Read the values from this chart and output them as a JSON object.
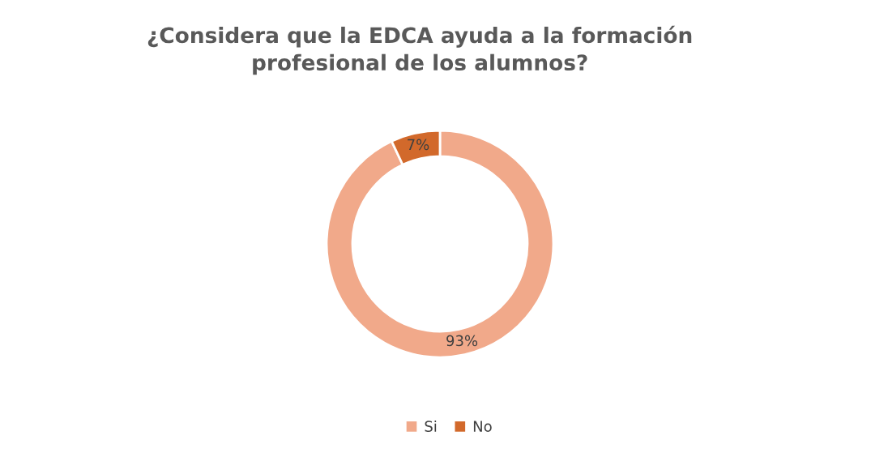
{
  "chart_data": {
    "type": "donut",
    "title": "¿Considera que la EDCA ayuda a la formación\nprofesional de los alumnos?",
    "categories": [
      "Si",
      "No"
    ],
    "values": [
      93,
      7
    ],
    "colors": [
      "#f1a98a",
      "#d2692b"
    ],
    "value_labels": [
      "93%",
      "7%"
    ],
    "legend": "bottom"
  }
}
